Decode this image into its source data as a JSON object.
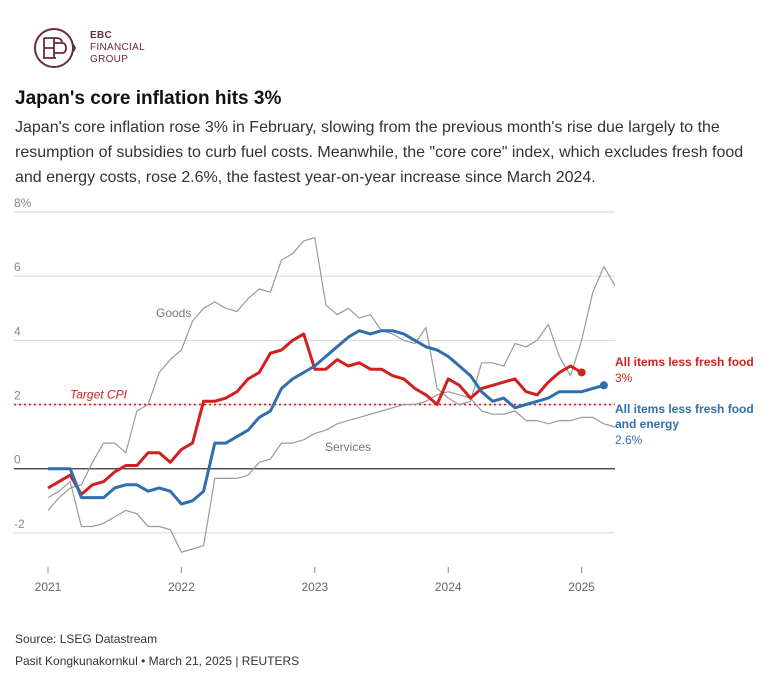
{
  "brand": {
    "monogram": "EBC",
    "line1": "EBC",
    "line2": "FINANCIAL",
    "line3": "GROUP",
    "color": "#6b2b3a"
  },
  "title": "Japan's core inflation hits 3%",
  "subtitle": "Japan's core inflation rose 3% in February, slowing from the previous month's rise due largely to the resumption of subsidies to curb fuel costs. Meanwhile, the \"core core\" index, which excludes fresh food and energy costs, rose 2.6%, the fastest year-on-year increase since March 2024.",
  "footer": {
    "source": "Source: LSEG Datastream",
    "credit": "Pasit Kongkunakornkul • March 21, 2025 | REUTERS"
  },
  "chart_data": {
    "type": "line",
    "title": "Japan's core inflation hits 3%",
    "ylim": [
      -3,
      8
    ],
    "y_ticks": [
      {
        "value": 8,
        "label": "8%"
      },
      {
        "value": 6,
        "label": "6"
      },
      {
        "value": 4,
        "label": "4"
      },
      {
        "value": 2,
        "label": "2"
      },
      {
        "value": 0,
        "label": "0"
      },
      {
        "value": -2,
        "label": "-2"
      }
    ],
    "xlim": [
      2021,
      2025.25
    ],
    "x_ticks": [
      {
        "value": 2021,
        "label": "2021"
      },
      {
        "value": 2022,
        "label": "2022"
      },
      {
        "value": 2023,
        "label": "2023"
      },
      {
        "value": 2024,
        "label": "2024"
      },
      {
        "value": 2025,
        "label": "2025"
      }
    ],
    "start": 2021,
    "step_months": 1,
    "target": {
      "value": 2,
      "label": "Target CPI",
      "color": "#d21f1f"
    },
    "series": [
      {
        "name": "Goods",
        "label": "Goods",
        "color": "#9a9a9a",
        "values": [
          -1.3,
          -0.9,
          -0.6,
          -0.5,
          0.2,
          0.8,
          0.8,
          0.5,
          1.8,
          2.0,
          3.0,
          3.4,
          3.7,
          4.6,
          5.0,
          5.2,
          5.0,
          4.9,
          5.3,
          5.6,
          5.5,
          6.5,
          6.7,
          7.1,
          7.2,
          5.1,
          4.8,
          5.0,
          4.7,
          4.8,
          4.3,
          4.2,
          4.0,
          3.9,
          4.4,
          2.5,
          2.2,
          2.0,
          2.1,
          3.3,
          3.3,
          3.2,
          3.9,
          3.8,
          4.0,
          4.5,
          3.5,
          2.9,
          4.0,
          5.5,
          6.3,
          5.7
        ]
      },
      {
        "name": "Services",
        "label": "Services",
        "color": "#9a9a9a",
        "values": [
          -0.9,
          -0.7,
          -0.4,
          -1.8,
          -1.8,
          -1.7,
          -1.5,
          -1.3,
          -1.4,
          -1.8,
          -1.8,
          -1.9,
          -2.6,
          -2.5,
          -2.4,
          -0.3,
          -0.3,
          -0.3,
          -0.2,
          0.2,
          0.3,
          0.8,
          0.8,
          0.9,
          1.1,
          1.2,
          1.4,
          1.5,
          1.6,
          1.7,
          1.8,
          1.9,
          2.0,
          2.0,
          2.1,
          2.3,
          2.4,
          2.3,
          2.2,
          1.8,
          1.7,
          1.7,
          1.8,
          1.5,
          1.5,
          1.4,
          1.5,
          1.5,
          1.6,
          1.6,
          1.4,
          1.3
        ]
      },
      {
        "name": "All items less fresh food",
        "label": "All items less fresh food",
        "value_label": "3%",
        "color": "#d21f1f",
        "values": [
          -0.6,
          -0.4,
          -0.2,
          -0.8,
          -0.5,
          -0.4,
          -0.1,
          0.1,
          0.1,
          0.5,
          0.5,
          0.2,
          0.6,
          0.8,
          2.1,
          2.1,
          2.2,
          2.4,
          2.8,
          3.0,
          3.6,
          3.7,
          4.0,
          4.2,
          3.1,
          3.1,
          3.4,
          3.2,
          3.3,
          3.1,
          3.1,
          2.9,
          2.8,
          2.5,
          2.3,
          2.0,
          2.8,
          2.6,
          2.2,
          2.5,
          2.6,
          2.7,
          2.8,
          2.4,
          2.3,
          2.7,
          3.0,
          3.2,
          3.0
        ]
      },
      {
        "name": "All items less fresh food and energy",
        "label": "All items less fresh food and energy",
        "value_label": "2.6%",
        "color": "#2f6fad",
        "values": [
          0.0,
          0.0,
          0.0,
          -0.9,
          -0.9,
          -0.9,
          -0.6,
          -0.5,
          -0.5,
          -0.7,
          -0.6,
          -0.7,
          -1.1,
          -1.0,
          -0.7,
          0.8,
          0.8,
          1.0,
          1.2,
          1.6,
          1.8,
          2.5,
          2.8,
          3.0,
          3.2,
          3.5,
          3.8,
          4.1,
          4.3,
          4.2,
          4.3,
          4.3,
          4.2,
          4.0,
          3.8,
          3.7,
          3.5,
          3.2,
          2.9,
          2.4,
          2.1,
          2.2,
          1.9,
          2.0,
          2.1,
          2.2,
          2.4,
          2.4,
          2.4,
          2.5,
          2.6
        ]
      }
    ]
  }
}
